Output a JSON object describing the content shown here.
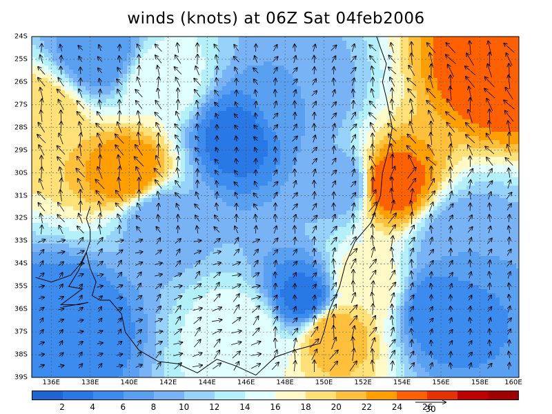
{
  "title": "winds (knots) at 06Z Sat 04feb2006",
  "chart_data": {
    "type": "heatmap",
    "title": "winds (knots) at 06Z Sat 04feb2006",
    "variable": "wind speed (knots) with wind vectors",
    "x_axis": {
      "range": [
        135,
        160
      ],
      "ticks": [
        "136E",
        "138E",
        "140E",
        "142E",
        "144E",
        "146E",
        "148E",
        "150E",
        "152E",
        "154E",
        "156E",
        "158E",
        "160E"
      ],
      "tick_values": [
        136,
        138,
        140,
        142,
        144,
        146,
        148,
        150,
        152,
        154,
        156,
        158,
        160
      ]
    },
    "y_axis": {
      "range": [
        -39,
        -24
      ],
      "ticks": [
        "24S",
        "25S",
        "26S",
        "27S",
        "28S",
        "29S",
        "30S",
        "31S",
        "32S",
        "33S",
        "34S",
        "35S",
        "36S",
        "37S",
        "38S",
        "39S"
      ],
      "tick_values": [
        -24,
        -25,
        -26,
        -27,
        -28,
        -29,
        -30,
        -31,
        -32,
        -33,
        -34,
        -35,
        -36,
        -37,
        -38,
        -39
      ]
    },
    "colorbar": {
      "labels": [
        "2",
        "4",
        "6",
        "8",
        "10",
        "12",
        "14",
        "16",
        "18",
        "20",
        "22",
        "24",
        "26"
      ],
      "colors": [
        "#1e64d2",
        "#2878e6",
        "#3c8cf0",
        "#5aa0f0",
        "#78b4f5",
        "#96d2fa",
        "#b4f0fa",
        "#e1ffff",
        "#fffac8",
        "#ffe178",
        "#ffc03c",
        "#ffa000",
        "#ff6000",
        "#e63200",
        "#c00000",
        "#a00000"
      ]
    },
    "reference_vector": {
      "label": "30",
      "value": 30
    },
    "speed_centers": [
      {
        "lon": 138.5,
        "lat": -24.8,
        "speed": 6
      },
      {
        "lon": 135.5,
        "lat": -27.5,
        "speed": 20
      },
      {
        "lon": 140.0,
        "lat": -30.0,
        "speed": 24
      },
      {
        "lon": 145.5,
        "lat": -28.5,
        "speed": 3
      },
      {
        "lon": 148.5,
        "lat": -27.0,
        "speed": 8
      },
      {
        "lon": 141.5,
        "lat": -32.0,
        "speed": 8
      },
      {
        "lon": 137.0,
        "lat": -36.5,
        "speed": 4
      },
      {
        "lon": 149.0,
        "lat": -35.5,
        "speed": 3
      },
      {
        "lon": 153.3,
        "lat": -30.5,
        "speed": 26
      },
      {
        "lon": 150.5,
        "lat": -37.0,
        "speed": 22
      },
      {
        "lon": 159.0,
        "lat": -25.5,
        "speed": 26
      },
      {
        "lon": 156.0,
        "lat": -36.0,
        "speed": 4
      },
      {
        "lon": 157.0,
        "lat": -33.0,
        "speed": 8
      },
      {
        "lon": 152.0,
        "lat": -35.0,
        "speed": 18
      },
      {
        "lon": 151.0,
        "lat": -30.5,
        "speed": 8
      },
      {
        "lon": 146.0,
        "lat": -37.0,
        "speed": 16
      },
      {
        "lon": 141.5,
        "lat": -26.0,
        "speed": 16
      }
    ],
    "grid": true
  }
}
